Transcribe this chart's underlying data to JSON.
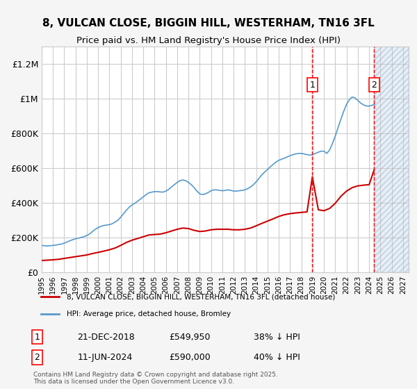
{
  "title": "8, VULCAN CLOSE, BIGGIN HILL, WESTERHAM, TN16 3FL",
  "subtitle": "Price paid vs. HM Land Registry's House Price Index (HPI)",
  "ylabel_ticks": [
    "£0",
    "£200K",
    "£400K",
    "£600K",
    "£800K",
    "£1M",
    "£1.2M"
  ],
  "ytick_values": [
    0,
    200000,
    400000,
    600000,
    800000,
    1000000,
    1200000
  ],
  "ylim": [
    0,
    1300000
  ],
  "xlim_start": 1995.0,
  "xlim_end": 2027.5,
  "bg_color": "#f5f5f5",
  "plot_bg_color": "#ffffff",
  "grid_color": "#cccccc",
  "red_line_color": "#cc0000",
  "blue_line_color": "#5599cc",
  "marker1_date": 2018.97,
  "marker2_date": 2024.44,
  "marker1_label": "1",
  "marker2_label": "2",
  "marker1_price": 549950,
  "marker2_price": 590000,
  "hatch_start": 2024.44,
  "hatch_color": "#aabbdd",
  "legend_line1": "8, VULCAN CLOSE, BIGGIN HILL, WESTERHAM, TN16 3FL (detached house)",
  "legend_line2": "HPI: Average price, detached house, Bromley",
  "table_row1": [
    "1",
    "21-DEC-2018",
    "£549,950",
    "38% ↓ HPI"
  ],
  "table_row2": [
    "2",
    "11-JUN-2024",
    "£590,000",
    "40% ↓ HPI"
  ],
  "footer": "Contains HM Land Registry data © Crown copyright and database right 2025.\nThis data is licensed under the Open Government Licence v3.0.",
  "hpi_data": {
    "years": [
      1995.0,
      1995.25,
      1995.5,
      1995.75,
      1996.0,
      1996.25,
      1996.5,
      1996.75,
      1997.0,
      1997.25,
      1997.5,
      1997.75,
      1998.0,
      1998.25,
      1998.5,
      1998.75,
      1999.0,
      1999.25,
      1999.5,
      1999.75,
      2000.0,
      2000.25,
      2000.5,
      2000.75,
      2001.0,
      2001.25,
      2001.5,
      2001.75,
      2002.0,
      2002.25,
      2002.5,
      2002.75,
      2003.0,
      2003.25,
      2003.5,
      2003.75,
      2004.0,
      2004.25,
      2004.5,
      2004.75,
      2005.0,
      2005.25,
      2005.5,
      2005.75,
      2006.0,
      2006.25,
      2006.5,
      2006.75,
      2007.0,
      2007.25,
      2007.5,
      2007.75,
      2008.0,
      2008.25,
      2008.5,
      2008.75,
      2009.0,
      2009.25,
      2009.5,
      2009.75,
      2010.0,
      2010.25,
      2010.5,
      2010.75,
      2011.0,
      2011.25,
      2011.5,
      2011.75,
      2012.0,
      2012.25,
      2012.5,
      2012.75,
      2013.0,
      2013.25,
      2013.5,
      2013.75,
      2014.0,
      2014.25,
      2014.5,
      2014.75,
      2015.0,
      2015.25,
      2015.5,
      2015.75,
      2016.0,
      2016.25,
      2016.5,
      2016.75,
      2017.0,
      2017.25,
      2017.5,
      2017.75,
      2018.0,
      2018.25,
      2018.5,
      2018.75,
      2019.0,
      2019.25,
      2019.5,
      2019.75,
      2020.0,
      2020.25,
      2020.5,
      2020.75,
      2021.0,
      2021.25,
      2021.5,
      2021.75,
      2022.0,
      2022.25,
      2022.5,
      2022.75,
      2023.0,
      2023.25,
      2023.5,
      2023.75,
      2024.0,
      2024.25,
      2024.5
    ],
    "values": [
      155000,
      153000,
      152000,
      153000,
      155000,
      157000,
      160000,
      163000,
      168000,
      175000,
      182000,
      188000,
      193000,
      197000,
      201000,
      205000,
      212000,
      222000,
      235000,
      248000,
      258000,
      265000,
      270000,
      272000,
      275000,
      280000,
      290000,
      300000,
      318000,
      338000,
      358000,
      375000,
      388000,
      398000,
      410000,
      422000,
      435000,
      448000,
      458000,
      462000,
      465000,
      465000,
      463000,
      462000,
      468000,
      478000,
      492000,
      505000,
      518000,
      528000,
      532000,
      528000,
      518000,
      505000,
      488000,
      468000,
      452000,
      448000,
      452000,
      460000,
      470000,
      475000,
      475000,
      472000,
      470000,
      472000,
      475000,
      472000,
      468000,
      468000,
      470000,
      472000,
      475000,
      482000,
      492000,
      505000,
      522000,
      542000,
      562000,
      578000,
      592000,
      608000,
      622000,
      635000,
      645000,
      652000,
      658000,
      665000,
      672000,
      678000,
      682000,
      685000,
      685000,
      682000,
      678000,
      675000,
      678000,
      685000,
      692000,
      698000,
      698000,
      685000,
      705000,
      742000,
      785000,
      835000,
      882000,
      928000,
      968000,
      995000,
      1010000,
      1005000,
      990000,
      975000,
      965000,
      958000,
      958000,
      962000,
      970000
    ]
  },
  "price_data": {
    "years": [
      1995.0,
      1995.5,
      1996.0,
      1996.5,
      1997.0,
      1997.5,
      1998.0,
      1998.5,
      1999.0,
      1999.5,
      2000.0,
      2000.5,
      2001.0,
      2001.5,
      2002.0,
      2002.5,
      2003.0,
      2003.5,
      2004.0,
      2004.5,
      2005.0,
      2005.5,
      2006.0,
      2006.5,
      2007.0,
      2007.5,
      2008.0,
      2008.5,
      2009.0,
      2009.5,
      2010.0,
      2010.5,
      2011.0,
      2011.5,
      2012.0,
      2012.5,
      2013.0,
      2013.5,
      2014.0,
      2014.5,
      2015.0,
      2015.5,
      2016.0,
      2016.5,
      2017.0,
      2017.5,
      2018.0,
      2018.5,
      2018.97,
      2019.5,
      2020.0,
      2020.5,
      2021.0,
      2021.5,
      2022.0,
      2022.5,
      2023.0,
      2023.5,
      2024.0,
      2024.44
    ],
    "values": [
      68000,
      70000,
      72000,
      75000,
      80000,
      85000,
      90000,
      95000,
      100000,
      108000,
      115000,
      122000,
      130000,
      140000,
      155000,
      172000,
      185000,
      195000,
      205000,
      215000,
      218000,
      220000,
      228000,
      238000,
      248000,
      255000,
      252000,
      242000,
      235000,
      238000,
      245000,
      248000,
      248000,
      248000,
      245000,
      245000,
      248000,
      255000,
      268000,
      282000,
      295000,
      308000,
      322000,
      332000,
      338000,
      342000,
      345000,
      348000,
      549950,
      360000,
      355000,
      368000,
      398000,
      438000,
      468000,
      488000,
      498000,
      502000,
      505000,
      590000
    ]
  }
}
